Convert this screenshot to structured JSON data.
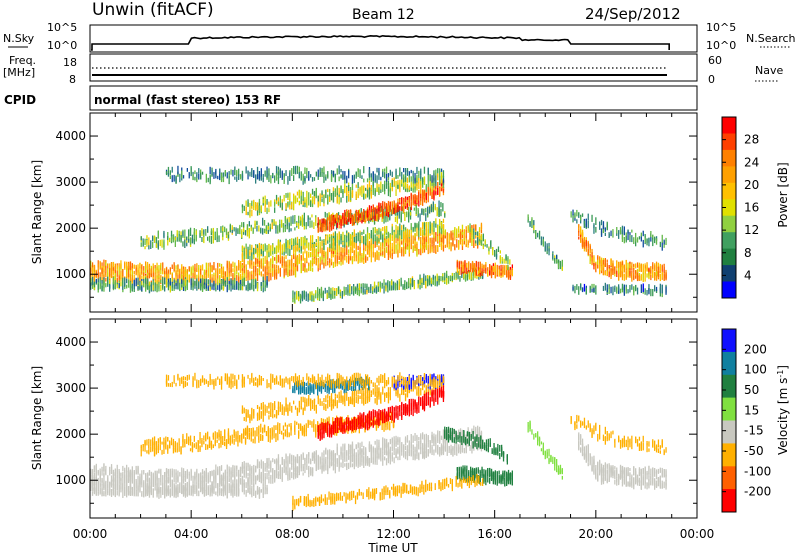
{
  "header": {
    "site": "Unwin (fitACF)",
    "beam": "Beam 12",
    "date": "24/Sep/2012"
  },
  "aux_panels": {
    "nsky_label": "N.Sky",
    "nsky_ticks": [
      "10^5",
      "10^0"
    ],
    "nsearch_label": "N.Search",
    "nsearch_ticks": [
      "10^5",
      "10^0"
    ],
    "freq_label_1": "Freq.",
    "freq_label_2": "[MHz]",
    "freq_ticks": [
      "18",
      "8"
    ],
    "nave_label": "Nave",
    "nave_ticks": [
      "60",
      "0"
    ],
    "cpid_label": "CPID",
    "cpid_value": "normal (fast stereo) 153 RF"
  },
  "power_scale": {
    "label": "Power [dB]",
    "ticks": [
      "28",
      "24",
      "20",
      "16",
      "12",
      "8",
      "4"
    ],
    "colors": [
      "#ff0000",
      "#ff4000",
      "#ff8000",
      "#ffa000",
      "#ffc000",
      "#e0e000",
      "#90d040",
      "#40a060",
      "#208040",
      "#104070",
      "#0000ff"
    ]
  },
  "velocity_scale": {
    "label": "Velocity [m s",
    "label_sup": "-1",
    "label_end": "]",
    "ticks": [
      "200",
      "100",
      "50",
      "15",
      "-15",
      "-50",
      "-100",
      "-200"
    ],
    "colors": [
      "#1010ff",
      "#1080a0",
      "#208040",
      "#80e040",
      "#c8c8c0",
      "#ffb000",
      "#ff6000",
      "#ff0000"
    ]
  },
  "chart_data": [
    {
      "type": "heatmap",
      "title": "Power",
      "ylabel": "Slant Range [km]",
      "xlabel": "",
      "x_range_hours": [
        0,
        24
      ],
      "ylim_km": [
        180,
        4500
      ],
      "yticks": [
        "1000",
        "2000",
        "3000",
        "4000"
      ],
      "echo_bands": [
        {
          "desc": "main near-range band",
          "t": [
            0,
            2,
            4,
            6,
            8,
            10,
            12,
            14,
            16,
            16.7
          ],
          "range_km": [
            1050,
            1000,
            950,
            1050,
            1200,
            1450,
            1600,
            1750,
            1850,
            1700
          ],
          "power_db": 22
        },
        {
          "desc": "upper band",
          "t": [
            9,
            10,
            11,
            12,
            13,
            14
          ],
          "range_km": [
            2000,
            2200,
            2350,
            2500,
            2700,
            2950
          ],
          "power_db": 26
        },
        {
          "desc": "late near-range band",
          "t": [
            19.5,
            20,
            21,
            22,
            22.8
          ],
          "range_km": [
            1300,
            1150,
            1050,
            1050,
            1050
          ],
          "power_db": 22
        }
      ]
    },
    {
      "type": "heatmap",
      "title": "Velocity",
      "ylabel": "Slant Range [km]",
      "xlabel": "Time UT",
      "x_range_hours": [
        0,
        24
      ],
      "xticks": [
        "00:00",
        "04:00",
        "08:00",
        "12:00",
        "16:00",
        "20:00",
        "00:00"
      ],
      "ylim_km": [
        180,
        4500
      ],
      "yticks": [
        "1000",
        "2000",
        "3000",
        "4000"
      ],
      "echo_bands": [
        {
          "desc": "ground scatter",
          "t": [
            0,
            4,
            8,
            12,
            16,
            23
          ],
          "range_km": [
            1100,
            1000,
            1300,
            1650,
            1700,
            1100
          ],
          "velocity_ms": 0
        },
        {
          "desc": "negative velocity region",
          "t": [
            10,
            11,
            12,
            13,
            14
          ],
          "range_km": [
            2500,
            2700,
            2900,
            3000,
            3100
          ],
          "velocity_ms": -150
        },
        {
          "desc": "positive velocity patch",
          "t": [
            14,
            15,
            16
          ],
          "range_km": [
            2200,
            2100,
            1200
          ],
          "velocity_ms": 60
        }
      ]
    }
  ]
}
